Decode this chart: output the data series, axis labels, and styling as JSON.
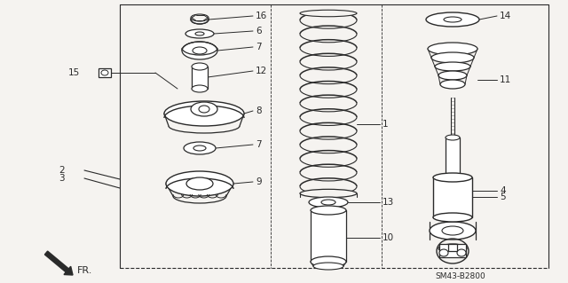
{
  "bg_color": "#f5f3f0",
  "line_color": "#2a2a2a",
  "diagram_code": "SM43-B2800",
  "fig_w": 6.4,
  "fig_h": 3.19,
  "dpi": 100
}
